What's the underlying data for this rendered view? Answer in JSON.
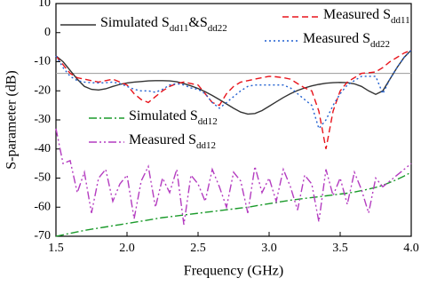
{
  "chart_data": {
    "type": "line",
    "x_label": "Frequency (GHz)",
    "y_label": "S-parameter (dB)",
    "xlim": [
      1.5,
      4.0
    ],
    "ylim": [
      -70,
      10
    ],
    "xticks": [
      1.5,
      {
        "value": 2.0,
        "label": "2.0"
      },
      2.5,
      {
        "value": 3.0,
        "label": "3.0"
      },
      3.5,
      {
        "value": 4.0,
        "label": "4.0"
      }
    ],
    "yticks": [
      10,
      0,
      -10,
      -20,
      -30,
      -40,
      -50,
      -60,
      -70
    ],
    "reference_line": -14,
    "x": [
      1.5,
      1.55,
      1.6,
      1.65,
      1.7,
      1.75,
      1.8,
      1.85,
      1.9,
      1.95,
      2.0,
      2.05,
      2.1,
      2.15,
      2.2,
      2.25,
      2.3,
      2.35,
      2.4,
      2.45,
      2.5,
      2.55,
      2.6,
      2.65,
      2.7,
      2.75,
      2.8,
      2.85,
      2.9,
      2.95,
      3.0,
      3.05,
      3.1,
      3.15,
      3.2,
      3.25,
      3.3,
      3.35,
      3.4,
      3.45,
      3.5,
      3.55,
      3.6,
      3.65,
      3.7,
      3.75,
      3.8,
      3.85,
      3.9,
      3.95,
      4.0
    ],
    "series": [
      {
        "name": "Simulated Sdd11&Sdd22",
        "color": "#333333",
        "dash": "none",
        "values": [
          -8,
          -10,
          -13,
          -16,
          -18.5,
          -19.5,
          -19.7,
          -19.3,
          -18.5,
          -17.8,
          -17.3,
          -17,
          -16.8,
          -16.6,
          -16.5,
          -16.5,
          -16.6,
          -16.9,
          -17.5,
          -18.3,
          -19.2,
          -20.3,
          -21.6,
          -23,
          -24.5,
          -26,
          -27.3,
          -28,
          -27.8,
          -26.8,
          -25.3,
          -23.8,
          -22.3,
          -21,
          -19.9,
          -19,
          -18.3,
          -17.8,
          -17.4,
          -17.2,
          -17.1,
          -17.2,
          -17.6,
          -18.5,
          -20,
          -21.2,
          -20,
          -16,
          -12,
          -8.5,
          -6
        ]
      },
      {
        "name": "Measured Sdd11",
        "color": "#e8141c",
        "dash": "7,4",
        "values": [
          -8,
          -11,
          -14,
          -15.5,
          -16,
          -16.5,
          -17,
          -16.5,
          -16,
          -17,
          -18,
          -21,
          -23,
          -24,
          -22,
          -20,
          -18.5,
          -17.5,
          -17,
          -17.5,
          -18,
          -21,
          -24,
          -25,
          -21,
          -18.5,
          -17,
          -16.5,
          -16,
          -15.5,
          -15,
          -15.2,
          -15.5,
          -16,
          -17.5,
          -19,
          -20,
          -27,
          -40,
          -27,
          -20,
          -17,
          -15.5,
          -14,
          -13.8,
          -13.5,
          -12,
          -10,
          -8.5,
          -7,
          -6
        ]
      },
      {
        "name": "Measured Sdd22",
        "color": "#1f5fd0",
        "dash": "2,3",
        "values": [
          -8,
          -12,
          -15,
          -16.5,
          -17,
          -17.2,
          -17.3,
          -17.2,
          -17,
          -17.5,
          -18.5,
          -19.5,
          -20,
          -20,
          -20.5,
          -19.5,
          -18,
          -17.5,
          -18,
          -19,
          -19.5,
          -21,
          -24,
          -26,
          -24,
          -22,
          -20,
          -18.5,
          -18,
          -18,
          -18,
          -18,
          -18,
          -19,
          -21,
          -23,
          -25,
          -33,
          -30,
          -25,
          -21,
          -18,
          -16.5,
          -15,
          -15,
          -15,
          -21,
          -16,
          -12,
          -8.5,
          -6
        ]
      },
      {
        "name": "Simulated Sdd12",
        "color": "#1a9a2a",
        "dash": "9,3,2,3",
        "values": [
          -70,
          -69.5,
          -69,
          -68.5,
          -68,
          -67.6,
          -67.2,
          -66.8,
          -66.4,
          -66,
          -65.6,
          -65.2,
          -64.8,
          -64.4,
          -64,
          -63.6,
          -63.3,
          -63,
          -62.7,
          -62.4,
          -62.1,
          -61.8,
          -61.5,
          -61.2,
          -60.9,
          -60.6,
          -60.3,
          -60,
          -59.6,
          -59.2,
          -58.8,
          -58.4,
          -58,
          -57.6,
          -57.3,
          -57,
          -56.7,
          -56.4,
          -56.1,
          -55.8,
          -55.5,
          -55.2,
          -54.8,
          -54.3,
          -53.8,
          -53.2,
          -52.5,
          -51.5,
          -50.5,
          -49.3,
          -48
        ]
      },
      {
        "name": "Measured Sdd12",
        "color": "#b43cc0",
        "dash": "9,3,2,3,2,3",
        "values": [
          -33,
          -45,
          -44,
          -55,
          -48,
          -62,
          -50,
          -47,
          -58,
          -52,
          -49,
          -64,
          -51,
          -46,
          -60,
          -50,
          -55,
          -47,
          -66,
          -49,
          -52,
          -58,
          -47,
          -53,
          -60,
          -48,
          -51,
          -62,
          -46,
          -55,
          -50,
          -58,
          -47,
          -53,
          -61,
          -49,
          -52,
          -65,
          -47,
          -56,
          -50,
          -59,
          -48,
          -54,
          -62,
          -50,
          -53,
          -51,
          -49,
          -47,
          -45
        ]
      }
    ]
  }
}
